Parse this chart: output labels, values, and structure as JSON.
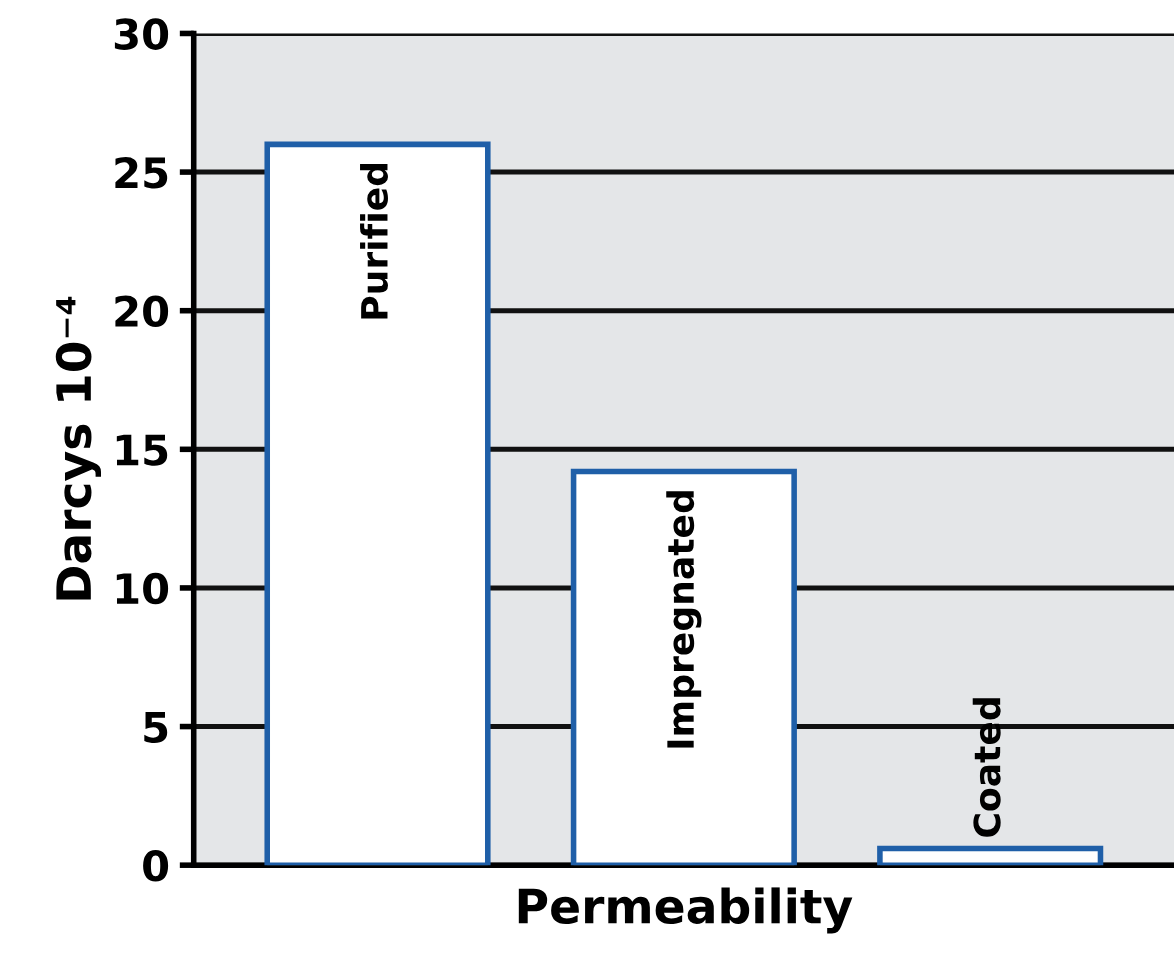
{
  "chart_data": {
    "type": "bar",
    "categories": [
      "Purified",
      "Impregnated",
      "Coated"
    ],
    "values": [
      26,
      14.2,
      0.6
    ],
    "color": "#1f5fa8",
    "xlabel": "Permeability",
    "ylabel": "Darcys 10⁻⁴",
    "ylim": [
      0,
      30
    ],
    "yticks": [
      0,
      5,
      10,
      15,
      20,
      25,
      30
    ],
    "grid": "y"
  }
}
